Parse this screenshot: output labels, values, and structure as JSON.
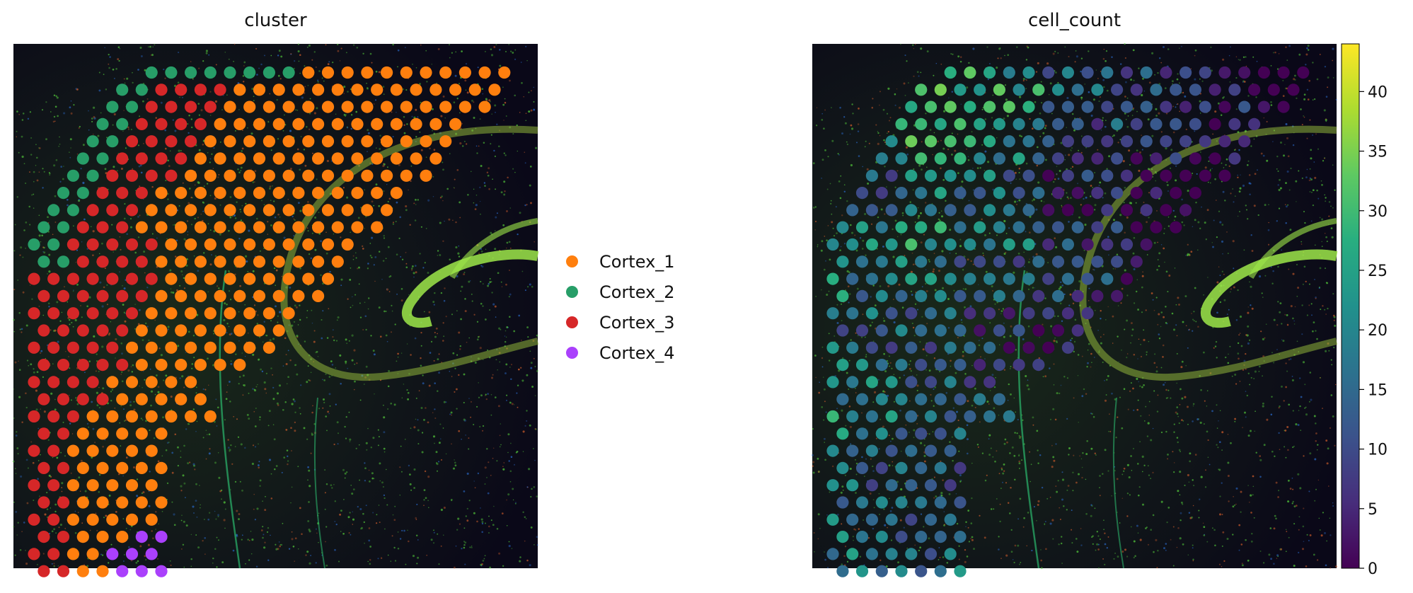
{
  "chart_data": [
    {
      "type": "scatter",
      "title": "cluster",
      "background": "fluorescence tissue image",
      "legend": {
        "placement": "right",
        "entries": [
          {
            "name": "Cortex_1",
            "color": "#ff7f0e"
          },
          {
            "name": "Cortex_2",
            "color": "#279e68"
          },
          {
            "name": "Cortex_3",
            "color": "#d62728"
          },
          {
            "name": "Cortex_4",
            "color": "#aa40fc"
          }
        ]
      },
      "grid": false
    },
    {
      "type": "scatter",
      "title": "cell_count",
      "background": "fluorescence tissue image",
      "colorbar": {
        "colormap": "viridis",
        "range": [
          0,
          44
        ],
        "ticks": [
          "0",
          "5",
          "10",
          "15",
          "20",
          "25",
          "30",
          "35",
          "40"
        ]
      },
      "grid": false
    }
  ]
}
